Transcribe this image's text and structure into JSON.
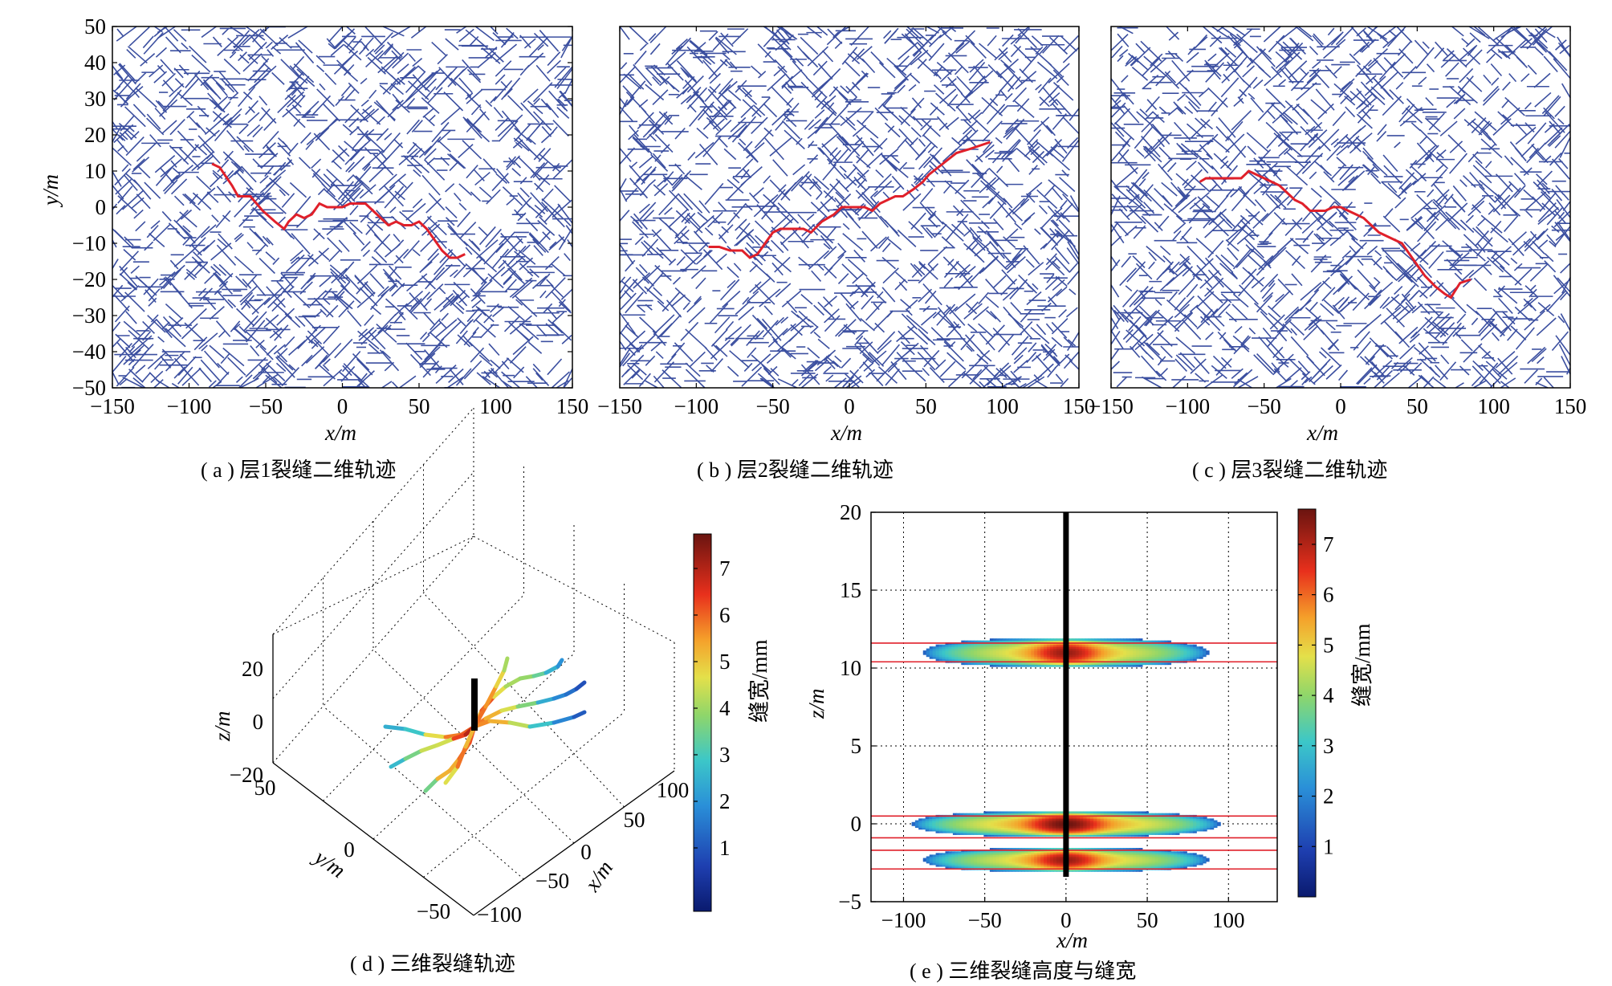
{
  "chart_data": [
    {
      "type": "scatter",
      "panel": "a",
      "caption": "( a ) 层1裂缝二维轨迹",
      "xlabel": "x/m",
      "ylabel": "y/m",
      "xlim": [
        -150,
        150
      ],
      "ylim": [
        -50,
        50
      ],
      "xticks": [
        "−150",
        "−100",
        "−50",
        "0",
        "50",
        "100",
        "150"
      ],
      "yticks": [
        "50",
        "40",
        "30",
        "20",
        "10",
        "0",
        "−10",
        "−20",
        "−30",
        "−40",
        "−50"
      ],
      "background_color": "#3b4fa0",
      "trace_color": "#e0202a",
      "trace": [
        [
          -85,
          12
        ],
        [
          -80,
          11
        ],
        [
          -72,
          6
        ],
        [
          -68,
          3
        ],
        [
          -60,
          3
        ],
        [
          -52,
          -1
        ],
        [
          -44,
          -4
        ],
        [
          -38,
          -6
        ],
        [
          -35,
          -4
        ],
        [
          -30,
          -2
        ],
        [
          -25,
          -3
        ],
        [
          -20,
          -2
        ],
        [
          -15,
          1
        ],
        [
          -10,
          0
        ],
        [
          -5,
          0
        ],
        [
          0,
          0
        ],
        [
          5,
          1
        ],
        [
          10,
          1
        ],
        [
          15,
          1
        ],
        [
          20,
          -1
        ],
        [
          25,
          -3
        ],
        [
          30,
          -5
        ],
        [
          35,
          -4
        ],
        [
          40,
          -5
        ],
        [
          45,
          -5
        ],
        [
          50,
          -4
        ],
        [
          55,
          -6
        ],
        [
          60,
          -9
        ],
        [
          65,
          -12
        ],
        [
          70,
          -14
        ],
        [
          75,
          -14
        ],
        [
          80,
          -13
        ]
      ]
    },
    {
      "type": "scatter",
      "panel": "b",
      "caption": "( b ) 层2裂缝二维轨迹",
      "xlabel": "x/m",
      "ylabel": "",
      "xlim": [
        -150,
        150
      ],
      "ylim": [
        -50,
        50
      ],
      "xticks": [
        "−150",
        "−100",
        "−50",
        "0",
        "50",
        "100",
        "150"
      ],
      "background_color": "#3b4fa0",
      "trace_color": "#e0202a",
      "trace": [
        [
          -92,
          -11
        ],
        [
          -85,
          -11
        ],
        [
          -78,
          -12
        ],
        [
          -70,
          -12
        ],
        [
          -65,
          -14
        ],
        [
          -60,
          -13
        ],
        [
          -55,
          -10
        ],
        [
          -50,
          -7
        ],
        [
          -45,
          -6
        ],
        [
          -35,
          -6
        ],
        [
          -30,
          -6
        ],
        [
          -25,
          -7
        ],
        [
          -18,
          -4
        ],
        [
          -10,
          -2
        ],
        [
          -5,
          0
        ],
        [
          0,
          0
        ],
        [
          5,
          0
        ],
        [
          10,
          0
        ],
        [
          15,
          -1
        ],
        [
          20,
          1
        ],
        [
          25,
          2
        ],
        [
          30,
          3
        ],
        [
          35,
          3
        ],
        [
          42,
          5
        ],
        [
          48,
          7
        ],
        [
          52,
          9
        ],
        [
          58,
          11
        ],
        [
          64,
          13
        ],
        [
          70,
          15
        ],
        [
          78,
          16
        ],
        [
          85,
          17
        ],
        [
          92,
          18
        ]
      ]
    },
    {
      "type": "scatter",
      "panel": "c",
      "caption": "( c ) 层3裂缝二维轨迹",
      "xlabel": "x/m",
      "ylabel": "",
      "xlim": [
        -150,
        150
      ],
      "ylim": [
        -50,
        50
      ],
      "xticks": [
        "−150",
        "−100",
        "−50",
        "0",
        "50",
        "100",
        "150"
      ],
      "background_color": "#3b4fa0",
      "trace_color": "#e0202a",
      "trace": [
        [
          -92,
          7
        ],
        [
          -88,
          8
        ],
        [
          -80,
          8
        ],
        [
          -72,
          8
        ],
        [
          -65,
          8
        ],
        [
          -60,
          10
        ],
        [
          -55,
          9
        ],
        [
          -50,
          8
        ],
        [
          -45,
          7
        ],
        [
          -40,
          6
        ],
        [
          -35,
          4
        ],
        [
          -30,
          2
        ],
        [
          -25,
          1
        ],
        [
          -20,
          -1
        ],
        [
          -15,
          -1
        ],
        [
          -10,
          -1
        ],
        [
          -5,
          0
        ],
        [
          0,
          0
        ],
        [
          5,
          -1
        ],
        [
          10,
          -2
        ],
        [
          15,
          -3
        ],
        [
          20,
          -5
        ],
        [
          25,
          -7
        ],
        [
          30,
          -8
        ],
        [
          35,
          -9
        ],
        [
          40,
          -10
        ],
        [
          45,
          -13
        ],
        [
          50,
          -16
        ],
        [
          55,
          -19
        ],
        [
          62,
          -22
        ],
        [
          68,
          -24
        ],
        [
          72,
          -25
        ],
        [
          78,
          -21
        ],
        [
          85,
          -20
        ]
      ]
    },
    {
      "type": "line",
      "panel": "d",
      "caption": "( d ) 三维裂缝轨迹",
      "xlabel": "x/m",
      "ylabel": "y/m",
      "zlabel": "z/m",
      "xticks": [
        "−100",
        "−50",
        "0",
        "50",
        "100"
      ],
      "yticks": [
        "50",
        "0",
        "−50"
      ],
      "zticks": [
        "20",
        "0",
        "−20"
      ],
      "colorbar_label": "缝宽/mm",
      "colorbar_ticks": [
        "7",
        "6",
        "5",
        "4",
        "3",
        "2",
        "1"
      ],
      "well_x": 0,
      "well_z_range": [
        -3,
        20
      ],
      "layers_z": [
        11,
        0,
        -2.3
      ]
    },
    {
      "type": "heatmap",
      "panel": "e",
      "caption": "( e ) 三维裂缝高度与缝宽",
      "xlabel": "x/m",
      "ylabel": "z/m",
      "xlim": [
        -120,
        130
      ],
      "ylim": [
        -5,
        20
      ],
      "xticks": [
        "−100",
        "−50",
        "0",
        "50",
        "100"
      ],
      "yticks": [
        "20",
        "15",
        "10",
        "5",
        "0",
        "−5"
      ],
      "colorbar_label": "缝宽/mm",
      "colorbar_ticks": [
        "7",
        "6",
        "5",
        "4",
        "3",
        "2",
        "1"
      ],
      "colorbar_range": [
        0,
        7.7
      ],
      "grid": true,
      "well_x": 0,
      "layer_bounds_z": [
        11.6,
        10.4,
        0.5,
        -0.9,
        -1.7,
        -2.9
      ],
      "fractures": [
        {
          "z_center": 11.0,
          "half_height": 0.9,
          "half_length": 88,
          "max_width": 7.2
        },
        {
          "z_center": 0.0,
          "half_height": 0.8,
          "half_length": 95,
          "max_width": 7.7
        },
        {
          "z_center": -2.3,
          "half_height": 0.75,
          "half_length": 88,
          "max_width": 7.2
        }
      ]
    }
  ]
}
